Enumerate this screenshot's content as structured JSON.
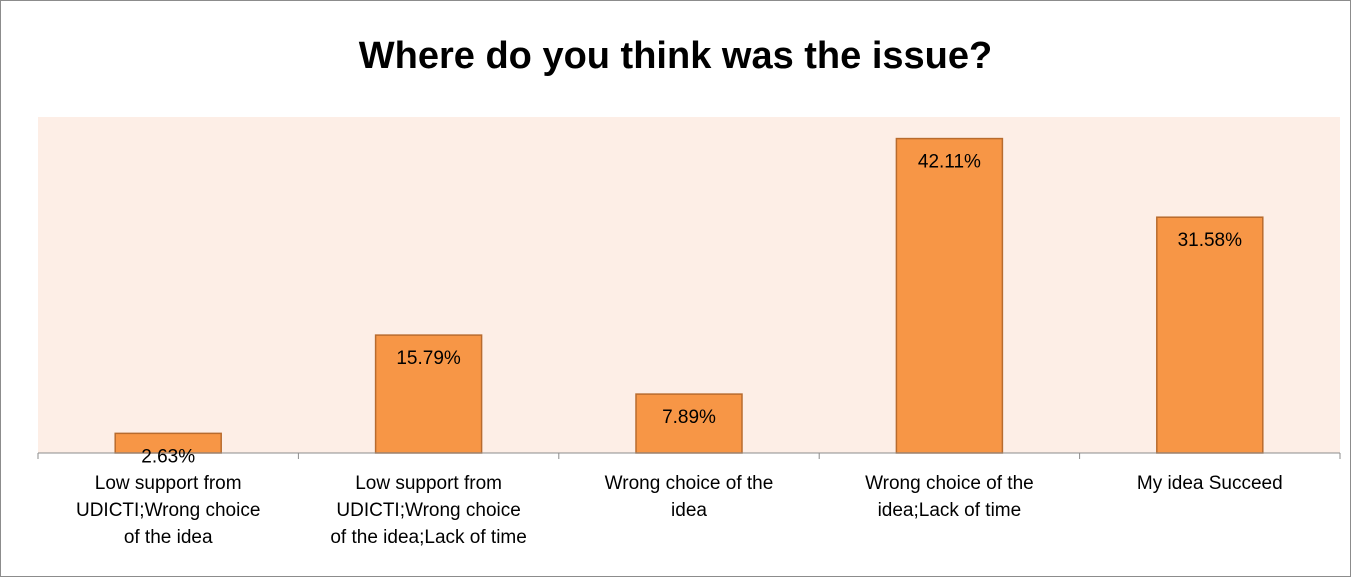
{
  "chart_data": {
    "type": "bar",
    "title": "Where do you think was the issue?",
    "categories": [
      "Low support from\nUDICTI;Wrong  choice\nof the idea",
      "Low support from\nUDICTI;Wrong  choice\nof the idea;Lack of time",
      "Wrong  choice of the\nidea",
      "Wrong  choice of the\nidea;Lack of time",
      "My idea Succeed"
    ],
    "values": [
      2.63,
      15.79,
      7.89,
      42.11,
      31.58
    ],
    "data_labels": [
      "2.63%",
      "15.79%",
      "7.89%",
      "42.11%",
      "31.58%"
    ],
    "ylim": [
      0,
      45
    ],
    "grid": false,
    "legend": "none",
    "colors": {
      "bar_fill": "#f79646",
      "bar_stroke": "#b86b2e",
      "plot_background": "#fdeee6",
      "axis": "#8c8c8c"
    }
  }
}
